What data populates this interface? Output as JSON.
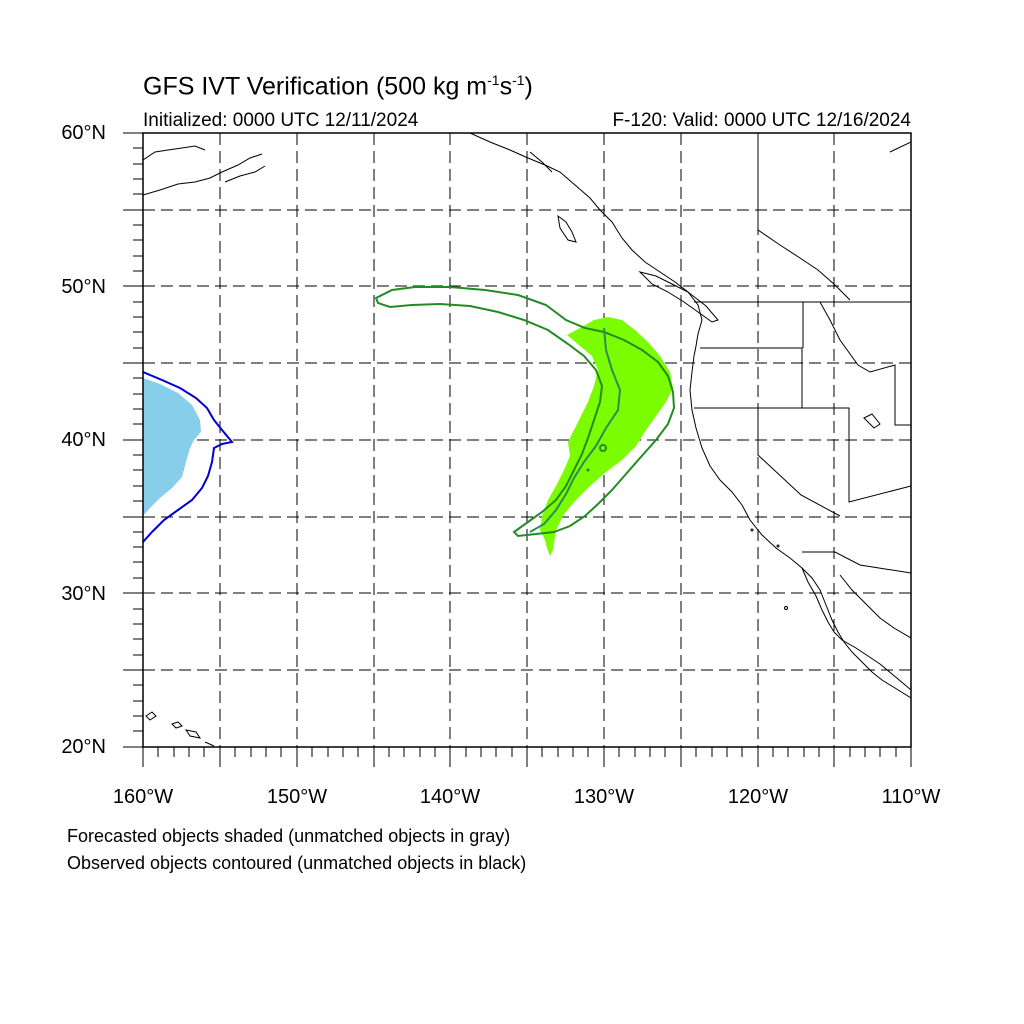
{
  "title": {
    "main": "GFS IVT Verification (500 kg m",
    "sup1": "-1",
    "mid": "s",
    "sup2": "-1",
    "end": ")"
  },
  "initialized": "Initialized: 0000 UTC 12/11/2024",
  "valid": "F-120: Valid: 0000 UTC 12/16/2024",
  "lat_labels": [
    "60°N",
    "50°N",
    "40°N",
    "30°N",
    "20°N"
  ],
  "lon_labels": [
    "160°W",
    "150°W",
    "140°W",
    "130°W",
    "120°W",
    "110°W"
  ],
  "notes": [
    "Forecasted objects shaded (unmatched objects in gray)",
    "Observed objects contoured (unmatched objects in black)"
  ],
  "colors": {
    "matched_forecast_1": "#87ceeb",
    "matched_observed_1": "#0000cd",
    "matched_forecast_2": "#7cfc00",
    "matched_observed_2": "#228b22"
  }
}
